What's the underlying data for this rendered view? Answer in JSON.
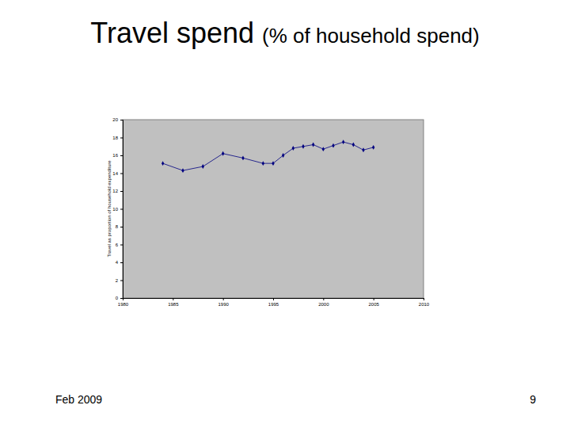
{
  "chart_data": {
    "type": "line",
    "title": "Travel spend",
    "subtitle": "(% of household spend)",
    "y_label": "Travel as proportion of household expenditure",
    "x": [
      1984,
      1986,
      1988,
      1990,
      1992,
      1994,
      1995,
      1996,
      1997,
      1998,
      1999,
      2000,
      2001,
      2002,
      2003,
      2004,
      2005
    ],
    "values": [
      15.1,
      14.3,
      14.75,
      16.2,
      15.7,
      15.1,
      15.1,
      16.0,
      16.8,
      17.0,
      17.2,
      16.7,
      17.1,
      17.5,
      17.2,
      16.6,
      16.9
    ],
    "color": "#000080",
    "marker": "diamond",
    "line_style": "solid",
    "grid": false,
    "xlim": [
      1980,
      2010
    ],
    "xticks": [
      1980,
      1985,
      1990,
      1995,
      2000,
      2005,
      2010
    ],
    "ylim": [
      0,
      20
    ],
    "yticks": [
      0,
      2,
      4,
      6,
      8,
      10,
      12,
      14,
      16,
      18,
      20
    ]
  },
  "slide": {
    "footer_left": "Feb 2009",
    "page_number": "9"
  }
}
